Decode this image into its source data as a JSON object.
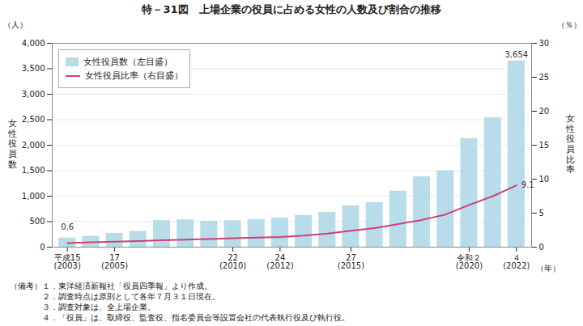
{
  "chart_data": {
    "type": "bar",
    "title": "特－31図　上場企業の役員に占める女性の人数及び割合の推移",
    "categories": [
      "平成15\n(2003)",
      null,
      "17\n(2005)",
      null,
      null,
      null,
      null,
      "22\n(2010)",
      null,
      "24\n(2012)",
      null,
      null,
      "27\n(2015)",
      null,
      null,
      null,
      null,
      "令和２\n(2020)",
      null,
      "４\n(2022)"
    ],
    "xlabel": "（年）",
    "ylabel": "女\n性\n役\n員\n数",
    "y2label": "女\n性\n役\n員\n比\n率",
    "ylabel_unit": "（人）",
    "y2label_unit": "（％）",
    "ylim": [
      0,
      4000
    ],
    "yticks": [
      0,
      500,
      {
        "value": 1000,
        "label": "1,000"
      },
      {
        "value": 1500,
        "label": "1,500"
      },
      {
        "value": 2000,
        "label": "2,000"
      },
      {
        "value": 2500,
        "label": "2,500"
      },
      {
        "value": 3000,
        "label": "3,000"
      },
      {
        "value": 3500,
        "label": "3,500"
      },
      {
        "value": 4000,
        "label": "4,000"
      }
    ],
    "y2lim": [
      0,
      30
    ],
    "y2ticks": [
      0,
      5,
      10,
      15,
      20,
      25,
      30
    ],
    "grid": true,
    "legend": "upper left",
    "series": [
      {
        "name": "女性役員数（左目盛）",
        "type": "bar",
        "color": "#b8dcea",
        "values": [
          180,
          215,
          270,
          310,
          520,
          535,
          510,
          520,
          545,
          570,
          625,
          685,
          810,
          875,
          1100,
          1380,
          1500,
          2130,
          2540,
          3654
        ]
      },
      {
        "name": "女性役員比率（右目盛）",
        "type": "line",
        "color": "#d04070",
        "axis": "y2",
        "values": [
          0.6,
          0.7,
          0.8,
          0.9,
          1.0,
          1.1,
          1.2,
          1.3,
          1.4,
          1.5,
          1.7,
          2.0,
          2.4,
          2.8,
          3.4,
          4.0,
          4.8,
          6.2,
          7.5,
          9.1
        ]
      }
    ],
    "annotations": [
      {
        "text": "0.6",
        "x": "平成15\n(2003)",
        "y": 0.6,
        "axis": "y2"
      },
      {
        "text": "3,654",
        "x": "４\n(2022)",
        "y": 3654
      },
      {
        "text": "9.1",
        "x": "４\n(2022)",
        "y": 9.1,
        "axis": "y2"
      }
    ],
    "notes": [
      "（備考）１．東洋経済新報社「役員四季報」より作成。",
      "　　　　２．調査時点は原則として各年７月３１日現在。",
      "　　　　３．調査対象は、全上場企業。",
      "　　　　４．「役員」は、取締役、監査役、指名委員会等設置会社の代表執行役及び執行役。"
    ]
  }
}
